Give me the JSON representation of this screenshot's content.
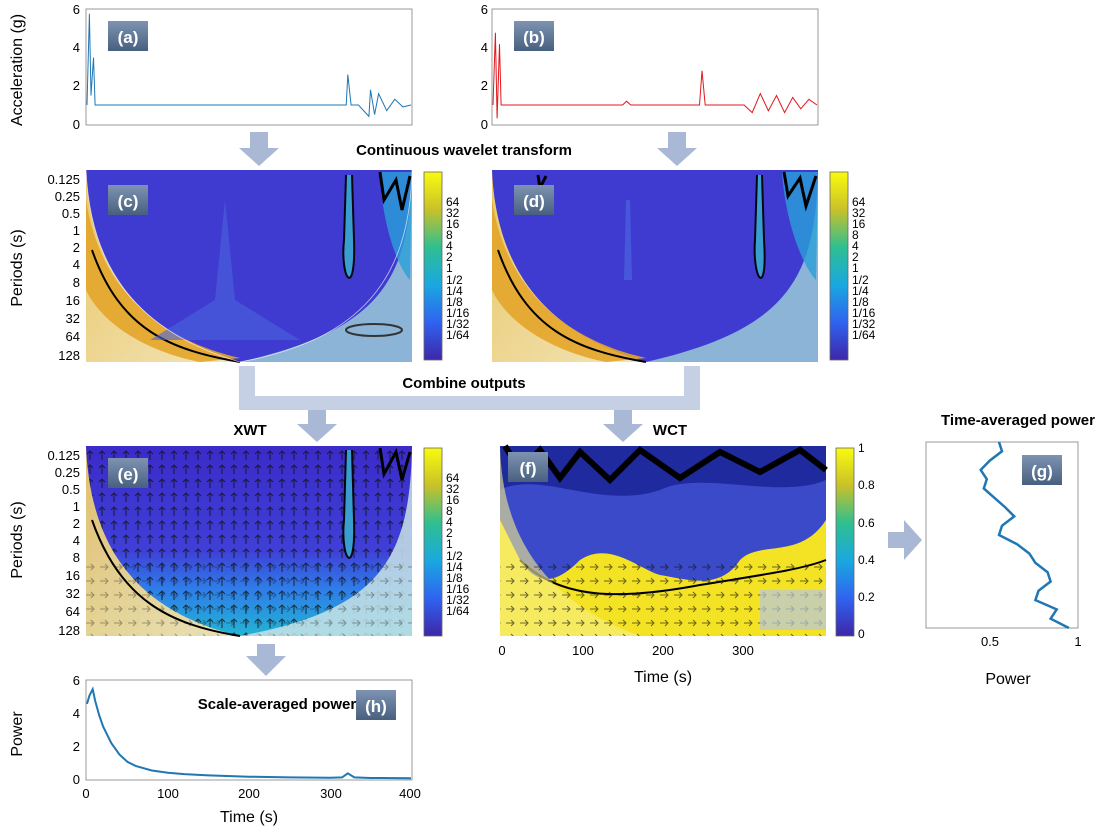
{
  "panel_labels": {
    "a": "(a)",
    "b": "(b)",
    "c": "(c)",
    "d": "(d)",
    "e": "(e)",
    "f": "(f)",
    "g": "(g)",
    "h": "(h)"
  },
  "flow_labels": {
    "cwt": "Continuous wavelet transform",
    "combine": "Combine outputs",
    "xwt": "XWT",
    "wct": "WCT",
    "time_avg": "Time-averaged power",
    "scale_avg": "Scale-averaged power"
  },
  "axis_labels": {
    "acceleration": "Acceleration (g)",
    "periods": "Periods (s)",
    "power": "Power",
    "time": "Time (s)"
  },
  "ticks": {
    "accel_y": [
      "6",
      "4",
      "2",
      "0"
    ],
    "period_y": [
      "0.125",
      "0.25",
      "0.5",
      "1",
      "2",
      "4",
      "8",
      "16",
      "32",
      "64",
      "128"
    ],
    "power_colorbar": [
      "64",
      "32",
      "16",
      "8",
      "4",
      "2",
      "1",
      "1/2",
      "1/4",
      "1/8",
      "1/16",
      "1/32",
      "1/64"
    ],
    "coherence_colorbar": [
      "1",
      "0.8",
      "0.6",
      "0.4",
      "0.2",
      "0"
    ],
    "time_x": [
      "0",
      "100",
      "200",
      "300"
    ],
    "time_x_h": [
      "0",
      "100",
      "200",
      "300",
      "400"
    ],
    "power_y_h": [
      "6",
      "4",
      "2",
      "0"
    ],
    "power_x_g": [
      "0.5",
      "1"
    ]
  },
  "colors": {
    "signal_a": "#1f77b4",
    "signal_b": "#e3171c",
    "arrow": "#a9b8d4",
    "panel_tag_bg": "#5b7191"
  },
  "chart_data": [
    {
      "type": "line",
      "panel": "a",
      "ylabel": "Acceleration (g)",
      "ylim": [
        0,
        6
      ],
      "xlim": [
        0,
        400
      ],
      "x": [
        0,
        3,
        5,
        8,
        10,
        12,
        60,
        80,
        85,
        90,
        100,
        150,
        195,
        250,
        320,
        322,
        326,
        335,
        348,
        350,
        355,
        360,
        370,
        380,
        390,
        400
      ],
      "y": [
        1.0,
        5.8,
        1.5,
        3.5,
        1.0,
        1.0,
        1.0,
        1.0,
        1.0,
        1.0,
        1.0,
        1.0,
        1.0,
        1.0,
        1.0,
        2.6,
        1.0,
        1.0,
        0.4,
        1.8,
        0.5,
        1.6,
        0.7,
        1.3,
        0.9,
        1.0
      ]
    },
    {
      "type": "line",
      "panel": "b",
      "ylim": [
        0,
        6
      ],
      "xlim": [
        0,
        400
      ],
      "x": [
        0,
        3,
        5,
        8,
        10,
        12,
        60,
        100,
        150,
        160,
        165,
        170,
        200,
        255,
        258,
        262,
        270,
        300,
        310,
        320,
        330,
        340,
        350,
        360,
        370,
        380,
        390,
        400
      ],
      "y": [
        1.0,
        4.8,
        0.3,
        4.2,
        1.0,
        1.0,
        1.0,
        1.0,
        1.0,
        1.0,
        1.2,
        1.0,
        1.0,
        1.0,
        2.8,
        1.0,
        1.0,
        1.0,
        1.0,
        0.6,
        1.6,
        0.7,
        1.5,
        0.6,
        1.4,
        0.8,
        1.3,
        1.0
      ]
    },
    {
      "type": "line",
      "panel": "h",
      "title": "Scale-averaged power",
      "xlabel": "Time (s)",
      "ylabel": "Power",
      "xlim": [
        0,
        400
      ],
      "ylim": [
        0,
        6
      ],
      "x": [
        0,
        3,
        7,
        10,
        15,
        20,
        30,
        40,
        50,
        60,
        80,
        100,
        120,
        150,
        200,
        250,
        300,
        315,
        322,
        330,
        350,
        400
      ],
      "y": [
        4.6,
        5.1,
        5.5,
        4.8,
        3.9,
        3.2,
        2.2,
        1.5,
        1.05,
        0.8,
        0.52,
        0.38,
        0.3,
        0.22,
        0.14,
        0.1,
        0.08,
        0.1,
        0.35,
        0.1,
        0.06,
        0.05
      ]
    },
    {
      "type": "line",
      "panel": "g",
      "title": "Time-averaged power",
      "xlabel": "Power",
      "xlim": [
        0,
        1
      ],
      "period_levels": [
        0,
        0.5,
        1,
        1.5,
        2,
        2.5,
        3,
        3.5,
        4,
        4.5,
        5,
        5.5,
        6,
        6.5,
        7,
        7.5,
        8,
        8.5,
        9,
        9.5,
        10
      ],
      "power": [
        0.48,
        0.5,
        0.42,
        0.36,
        0.4,
        0.38,
        0.45,
        0.52,
        0.58,
        0.5,
        0.48,
        0.6,
        0.68,
        0.72,
        0.8,
        0.82,
        0.74,
        0.72,
        0.86,
        0.82,
        0.94
      ]
    }
  ]
}
